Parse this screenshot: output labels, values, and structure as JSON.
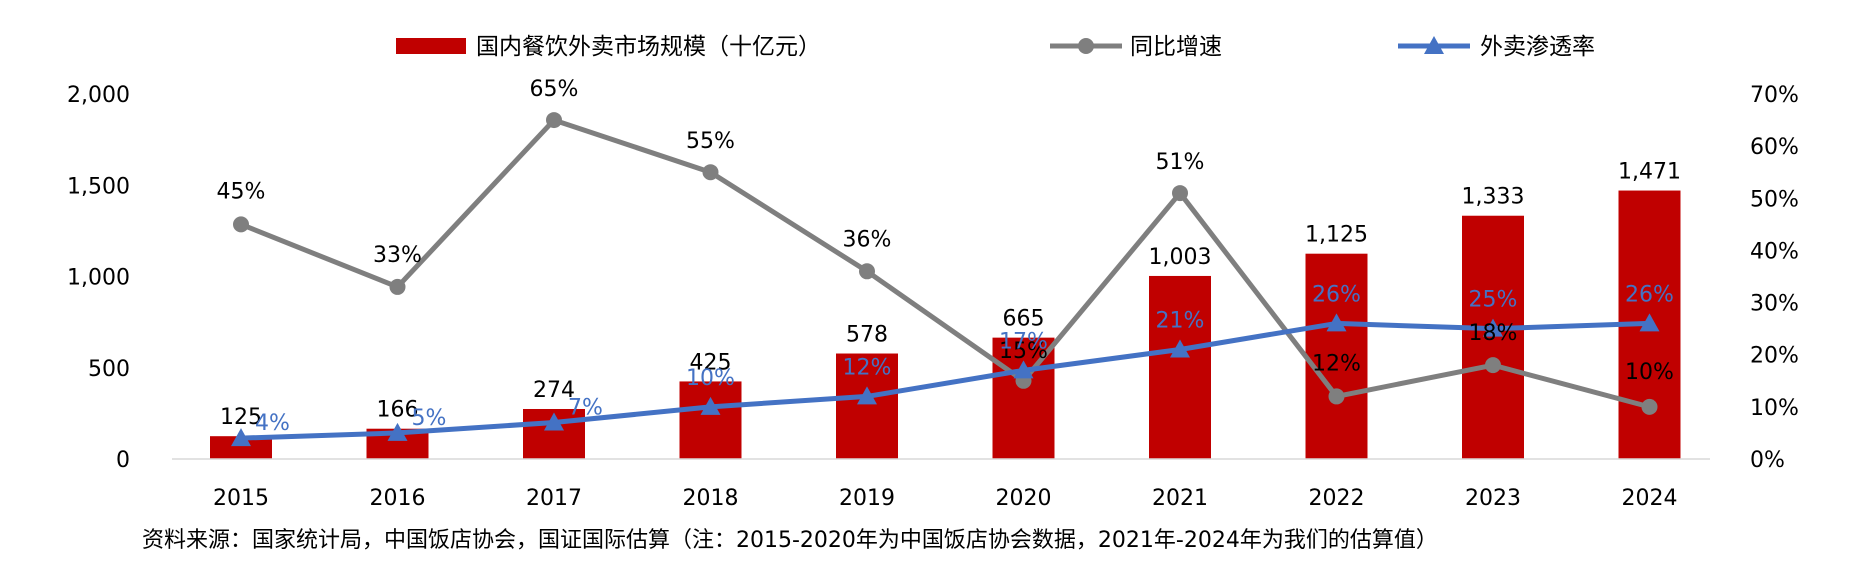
{
  "chart_data": {
    "type": "bar",
    "categories": [
      "2015",
      "2016",
      "2017",
      "2018",
      "2019",
      "2020",
      "2021",
      "2022",
      "2023",
      "2024"
    ],
    "series": [
      {
        "name": "国内餐饮外卖市场规模（十亿元）",
        "type": "bar",
        "axis": "left",
        "color": "#C00000",
        "values": [
          125,
          166,
          274,
          425,
          578,
          665,
          1003,
          1125,
          1333,
          1471
        ],
        "labels": [
          "125",
          "166",
          "274",
          "425",
          "578",
          "665",
          "1,003",
          "1,125",
          "1,333",
          "1,471"
        ]
      },
      {
        "name": "同比增速",
        "type": "line",
        "axis": "right",
        "color": "#7F7F7F",
        "values": [
          45,
          33,
          65,
          55,
          36,
          15,
          51,
          12,
          18,
          10
        ],
        "labels": [
          "45%",
          "33%",
          "65%",
          "55%",
          "36%",
          "15%",
          "51%",
          "12%",
          "18%",
          "10%"
        ]
      },
      {
        "name": "外卖渗透率",
        "type": "line",
        "axis": "right",
        "color": "#4472C4",
        "values": [
          4,
          5,
          7,
          10,
          12,
          17,
          21,
          26,
          25,
          26
        ],
        "labels": [
          "4%",
          "5%",
          "7%",
          "10%",
          "12%",
          "17%",
          "21%",
          "26%",
          "25%",
          "26%"
        ]
      }
    ],
    "left_axis": {
      "min": 0,
      "max": 2000,
      "ticks": [
        "0",
        "500",
        "1,000",
        "1,500",
        "2,000"
      ]
    },
    "right_axis": {
      "min": 0,
      "max": 70,
      "ticks": [
        "0%",
        "10%",
        "20%",
        "30%",
        "40%",
        "50%",
        "60%",
        "70%"
      ]
    },
    "legend_position": "top",
    "grid": false
  },
  "source_text": "资料来源：国家统计局，中国饭店协会，国证国际估算（注：2015-2020年为中国饭店协会数据，2021年-2024年为我们的估算值）"
}
